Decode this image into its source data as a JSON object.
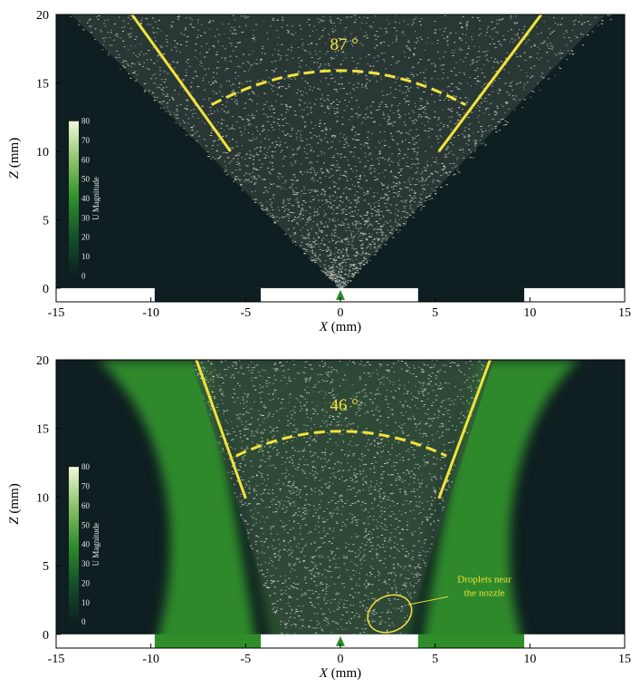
{
  "colors": {
    "background": "#0f1f21",
    "plume": "#2f8e2a",
    "droplet": "#d8d8d0",
    "annotation": "#f2e33a",
    "nozzle": "#2e8b2e",
    "floor": "#ffffff"
  },
  "chart_data": [
    {
      "type": "heatmap",
      "title": "",
      "xlabel_var": "X",
      "xlabel_unit": "(mm)",
      "ylabel_var": "Z",
      "ylabel_unit": "(mm)",
      "xlim": [
        -15,
        15
      ],
      "ylim": [
        -1,
        20
      ],
      "xticks": [
        -15,
        -10,
        -5,
        0,
        5,
        10,
        15
      ],
      "yticks": [
        0,
        5,
        10,
        15,
        20
      ],
      "colorbar": {
        "label": "U Magnitude",
        "ticks": [
          0,
          10,
          20,
          30,
          40,
          50,
          60,
          70,
          80
        ],
        "range": [
          0,
          80
        ]
      },
      "cone_lines": [
        {
          "x": [
            -11.0,
            -5.8
          ],
          "y": [
            20,
            10
          ]
        },
        {
          "x": [
            10.6,
            5.2
          ],
          "y": [
            20,
            10
          ]
        }
      ],
      "angle_arc": {
        "x_from": -6.8,
        "x_to": 6.6,
        "peak_y": 15.9,
        "end_y": 13.4
      },
      "angle_label": "87 °",
      "nozzle": {
        "x": 0,
        "y": 0
      },
      "walls": [
        [
          -9.7,
          -4.4
        ],
        [
          4.2,
          9.6
        ]
      ],
      "green_plume": false,
      "annotation": null
    },
    {
      "type": "heatmap",
      "title": "",
      "xlabel_var": "X",
      "xlabel_unit": "(mm)",
      "ylabel_var": "Z",
      "ylabel_unit": "(mm)",
      "xlim": [
        -15,
        15
      ],
      "ylim": [
        -1,
        20
      ],
      "xticks": [
        -15,
        -10,
        -5,
        0,
        5,
        10,
        15
      ],
      "yticks": [
        0,
        5,
        10,
        15,
        20
      ],
      "colorbar": {
        "label": "U Magnitude",
        "ticks": [
          0,
          10,
          20,
          30,
          40,
          50,
          60,
          70,
          80
        ],
        "range": [
          0,
          80
        ]
      },
      "cone_lines": [
        {
          "x": [
            -7.6,
            -5.0
          ],
          "y": [
            20,
            9.9
          ]
        },
        {
          "x": [
            7.9,
            5.2
          ],
          "y": [
            20,
            9.9
          ]
        }
      ],
      "angle_arc": {
        "x_from": -5.5,
        "x_to": 5.6,
        "peak_y": 14.8,
        "end_y": 13.0
      },
      "angle_label": "46 °",
      "nozzle": {
        "x": 0,
        "y": 0
      },
      "walls": [
        [
          -9.7,
          -4.4
        ],
        [
          4.2,
          9.6
        ]
      ],
      "green_plume": true,
      "annotation": {
        "lines": [
          "Droplets near",
          "the nozzle"
        ],
        "ellipse_center": [
          2.6,
          1.5
        ],
        "ellipse_radii": [
          1.2,
          1.3
        ],
        "text_anchor": [
          7.6,
          3.8
        ]
      }
    }
  ]
}
